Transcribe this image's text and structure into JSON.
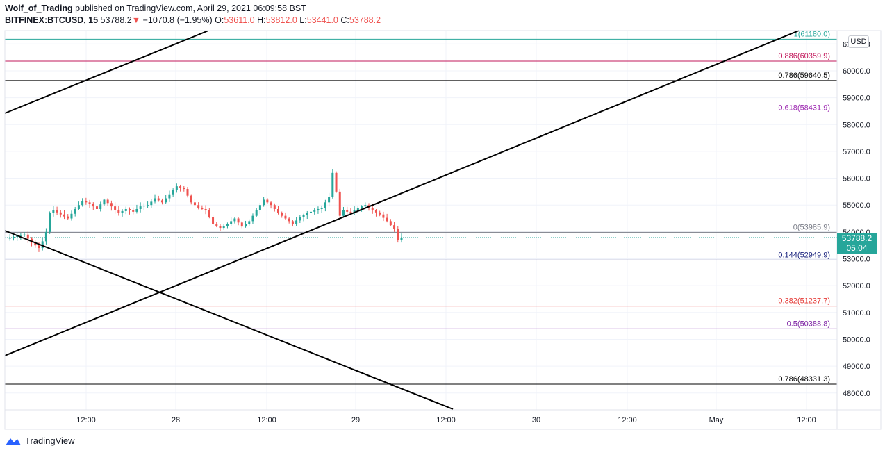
{
  "header": {
    "author": "Wolf_of_Trading",
    "published_text": "published on TradingView.com, April 29, 2021 06:09:58 BST",
    "symbol": "BITFINEX:BTCUSD, 15",
    "last": "53788.2",
    "change": "−1070.8 (−1.95%)",
    "o_label": "O:",
    "o_value": "53611.0",
    "h_label": "H:",
    "h_value": "53812.0",
    "l_label": "L:",
    "l_value": "53441.0",
    "c_label": "C:",
    "c_value": "53788.2"
  },
  "footer": {
    "brand": "TradingView"
  },
  "currency": "USD",
  "price_tag": {
    "price": "53788.2",
    "timer": "05:04"
  },
  "colors": {
    "up": "#26a69a",
    "down": "#ef5350",
    "candle_up": "#26a69a",
    "candle_down": "#ef5350"
  },
  "chart_data": {
    "type": "candlestick",
    "y_ticks": [
      "48000.0",
      "49000.0",
      "50000.0",
      "51000.0",
      "52000.0",
      "53000.0",
      "54000.0",
      "55000.0",
      "56000.0",
      "57000.0",
      "58000.0",
      "59000.0",
      "60000.0",
      "61000.0"
    ],
    "ylim": [
      47300,
      61500
    ],
    "x_ticks": [
      "12:00",
      "28",
      "12:00",
      "29",
      "12:00",
      "30",
      "12:00",
      "May",
      "12:00"
    ],
    "fib_levels": [
      {
        "label": "1(61180.0)",
        "price": 61180.0,
        "color": "#26a69a"
      },
      {
        "label": "0.886(60359.9)",
        "price": 60359.9,
        "color": "#c2185b"
      },
      {
        "label": "0.786(59640.5)",
        "price": 59640.5,
        "color": "#000000"
      },
      {
        "label": "0.618(58431.9)",
        "price": 58431.9,
        "color": "#9c27b0"
      },
      {
        "label": "0(53985.9)",
        "price": 53985.9,
        "color": "#787b86"
      },
      {
        "label": "0.144(52949.9)",
        "price": 52949.9,
        "color": "#1a237e"
      },
      {
        "label": "0.382(51237.7)",
        "price": 51237.7,
        "color": "#e53935"
      },
      {
        "label": "0.5(50388.8)",
        "price": 50388.8,
        "color": "#7b1fa2"
      },
      {
        "label": "0.786(48331.3)",
        "price": 48331.3,
        "color": "#000000"
      }
    ],
    "last_price": 53788.2,
    "price_path": [
      [
        0,
        53750
      ],
      [
        3,
        53850
      ],
      [
        5,
        53900
      ],
      [
        7,
        53600
      ],
      [
        9,
        53400
      ],
      [
        10,
        53650
      ],
      [
        11,
        54000
      ],
      [
        12,
        54700
      ],
      [
        13,
        54800
      ],
      [
        15,
        54650
      ],
      [
        17,
        54500
      ],
      [
        19,
        54850
      ],
      [
        21,
        55150
      ],
      [
        23,
        55050
      ],
      [
        25,
        54850
      ],
      [
        27,
        55200
      ],
      [
        29,
        54950
      ],
      [
        31,
        54700
      ],
      [
        33,
        54850
      ],
      [
        35,
        54750
      ],
      [
        37,
        54950
      ],
      [
        39,
        55000
      ],
      [
        41,
        55250
      ],
      [
        43,
        55100
      ],
      [
        45,
        55400
      ],
      [
        47,
        55700
      ],
      [
        49,
        55600
      ],
      [
        51,
        55100
      ],
      [
        53,
        54900
      ],
      [
        55,
        54800
      ],
      [
        57,
        54300
      ],
      [
        59,
        54150
      ],
      [
        61,
        54300
      ],
      [
        63,
        54500
      ],
      [
        65,
        54200
      ],
      [
        67,
        54400
      ],
      [
        69,
        54800
      ],
      [
        71,
        55200
      ],
      [
        73,
        55000
      ],
      [
        75,
        54700
      ],
      [
        77,
        54500
      ],
      [
        79,
        54300
      ],
      [
        81,
        54550
      ],
      [
        83,
        54700
      ],
      [
        85,
        54800
      ],
      [
        87,
        54900
      ],
      [
        89,
        55300
      ],
      [
        90,
        56200
      ],
      [
        91,
        55500
      ],
      [
        92,
        54600
      ],
      [
        93,
        54800
      ],
      [
        95,
        54700
      ],
      [
        97,
        54900
      ],
      [
        99,
        55000
      ],
      [
        101,
        54800
      ],
      [
        103,
        54650
      ],
      [
        105,
        54400
      ],
      [
        107,
        54100
      ],
      [
        108,
        53700
      ],
      [
        109,
        53788
      ]
    ]
  }
}
